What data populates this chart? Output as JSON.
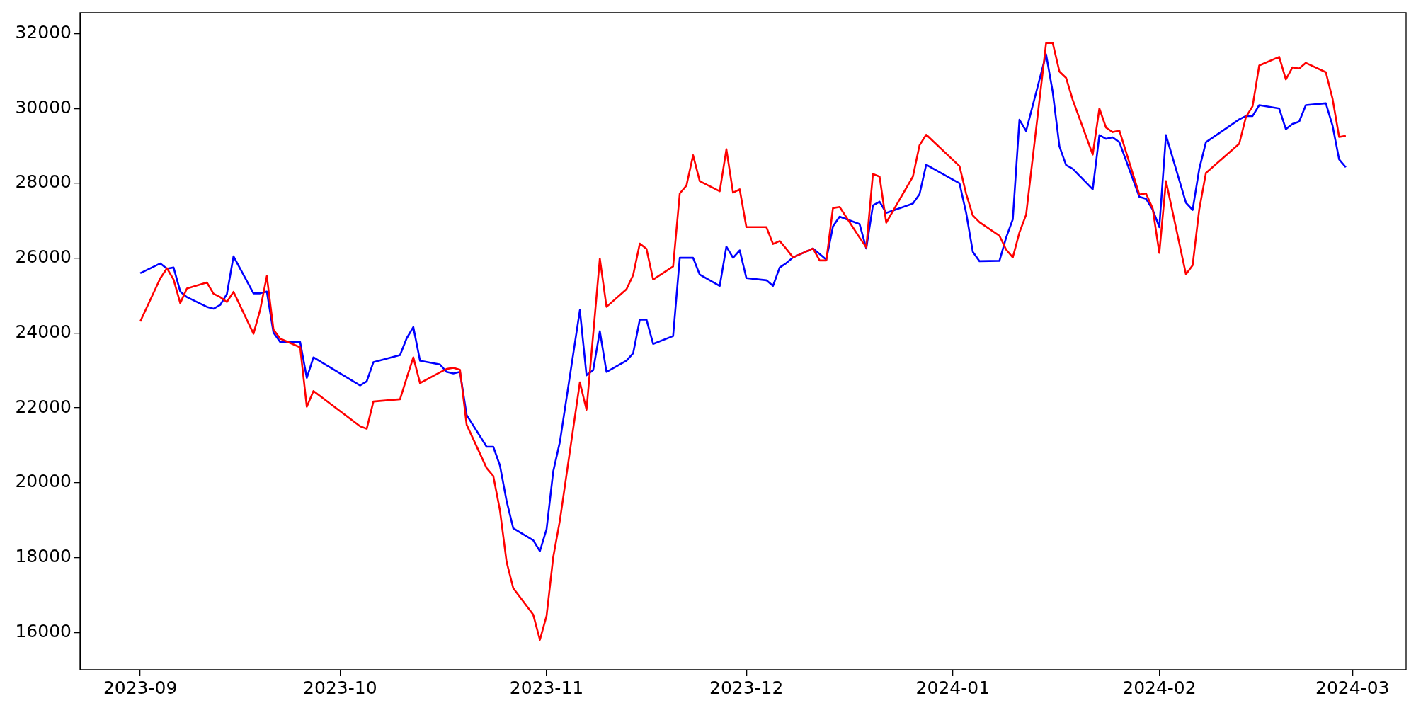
{
  "chart_data": {
    "type": "line",
    "x": [
      "2023-09-01",
      "2023-09-04",
      "2023-09-05",
      "2023-09-06",
      "2023-09-07",
      "2023-09-08",
      "2023-09-11",
      "2023-09-12",
      "2023-09-13",
      "2023-09-14",
      "2023-09-15",
      "2023-09-18",
      "2023-09-19",
      "2023-09-20",
      "2023-09-21",
      "2023-09-22",
      "2023-09-25",
      "2023-09-26",
      "2023-09-27",
      "2023-10-04",
      "2023-10-05",
      "2023-10-06",
      "2023-10-10",
      "2023-10-11",
      "2023-10-12",
      "2023-10-13",
      "2023-10-16",
      "2023-10-17",
      "2023-10-18",
      "2023-10-19",
      "2023-10-20",
      "2023-10-23",
      "2023-10-24",
      "2023-10-25",
      "2023-10-26",
      "2023-10-27",
      "2023-10-30",
      "2023-10-31",
      "2023-11-01",
      "2023-11-02",
      "2023-11-03",
      "2023-11-06",
      "2023-11-07",
      "2023-11-08",
      "2023-11-09",
      "2023-11-10",
      "2023-11-13",
      "2023-11-14",
      "2023-11-15",
      "2023-11-16",
      "2023-11-17",
      "2023-11-20",
      "2023-11-21",
      "2023-11-22",
      "2023-11-23",
      "2023-11-24",
      "2023-11-27",
      "2023-11-28",
      "2023-11-29",
      "2023-11-30",
      "2023-12-01",
      "2023-12-04",
      "2023-12-05",
      "2023-12-06",
      "2023-12-07",
      "2023-12-08",
      "2023-12-11",
      "2023-12-12",
      "2023-12-13",
      "2023-12-14",
      "2023-12-15",
      "2023-12-18",
      "2023-12-19",
      "2023-12-20",
      "2023-12-21",
      "2023-12-22",
      "2023-12-26",
      "2023-12-27",
      "2023-12-28",
      "2024-01-02",
      "2024-01-03",
      "2024-01-04",
      "2024-01-05",
      "2024-01-08",
      "2024-01-09",
      "2024-01-10",
      "2024-01-11",
      "2024-01-12",
      "2024-01-15",
      "2024-01-16",
      "2024-01-17",
      "2024-01-18",
      "2024-01-19",
      "2024-01-22",
      "2024-01-23",
      "2024-01-24",
      "2024-01-25",
      "2024-01-26",
      "2024-01-29",
      "2024-01-30",
      "2024-01-31",
      "2024-02-01",
      "2024-02-02",
      "2024-02-05",
      "2024-02-06",
      "2024-02-07",
      "2024-02-08",
      "2024-02-13",
      "2024-02-14",
      "2024-02-15",
      "2024-02-16",
      "2024-02-19",
      "2024-02-20",
      "2024-02-21",
      "2024-02-22",
      "2024-02-23",
      "2024-02-26",
      "2024-02-27",
      "2024-02-28",
      "2024-02-29"
    ],
    "series": [
      {
        "color": "#ff0000",
        "values": [
          24310,
          25460,
          25730,
          25430,
          24800,
          25190,
          25350,
          25050,
          24960,
          24830,
          25100,
          23980,
          24620,
          25520,
          24090,
          23850,
          23620,
          22030,
          22450,
          21510,
          21440,
          22170,
          22230,
          22800,
          23350,
          22660,
          22950,
          23040,
          23070,
          23020,
          21550,
          20390,
          20180,
          19260,
          17880,
          17180,
          16470,
          15800,
          16440,
          18010,
          18990,
          22680,
          21950,
          23970,
          25990,
          24700,
          25170,
          25550,
          26390,
          26250,
          25430,
          25780,
          27730,
          27940,
          28750,
          28060,
          27790,
          28910,
          27750,
          27840,
          26830,
          26830,
          26380,
          26460,
          26250,
          26020,
          26260,
          25940,
          25940,
          27340,
          27370,
          26550,
          26290,
          28250,
          28180,
          26950,
          28180,
          29020,
          29300,
          28460,
          27720,
          27140,
          26960,
          26600,
          26230,
          26020,
          26690,
          27160,
          31750,
          31750,
          30990,
          30820,
          30230,
          28770,
          30000,
          29490,
          29370,
          29410,
          27700,
          27730,
          27330,
          26140,
          28060,
          25570,
          25810,
          27310,
          28280,
          29060,
          29770,
          30060,
          31150,
          31380,
          30780,
          31100,
          31070,
          31220,
          30970,
          30270,
          29240,
          29270
        ]
      },
      {
        "color": "#0000ff",
        "values": [
          25600,
          25860,
          25720,
          25750,
          25110,
          24960,
          24700,
          24650,
          24750,
          25040,
          26050,
          25060,
          25060,
          25110,
          24010,
          23760,
          23760,
          22800,
          23350,
          22600,
          22710,
          23220,
          23410,
          23860,
          24160,
          23260,
          23160,
          22960,
          22920,
          22960,
          21810,
          20960,
          20960,
          20460,
          19510,
          18780,
          18460,
          18170,
          18760,
          20300,
          21090,
          24610,
          22870,
          23010,
          24050,
          22960,
          23260,
          23460,
          24360,
          24360,
          23710,
          23920,
          26010,
          26010,
          26010,
          25560,
          25260,
          26310,
          26010,
          26210,
          25470,
          25410,
          25260,
          25750,
          25870,
          26020,
          26260,
          26110,
          25960,
          26850,
          27110,
          26910,
          26260,
          27410,
          27510,
          27210,
          27460,
          27710,
          28500,
          28000,
          27210,
          26170,
          25920,
          25930,
          26550,
          27040,
          29700,
          29400,
          31450,
          30440,
          28990,
          28490,
          28390,
          27840,
          29290,
          29190,
          29230,
          29100,
          27640,
          27590,
          27300,
          26830,
          29290,
          27480,
          27290,
          28390,
          29100,
          29710,
          29800,
          29800,
          30090,
          30000,
          29450,
          29590,
          29650,
          30090,
          30140,
          29550,
          28640,
          28430
        ]
      }
    ],
    "xlim": [
      "2023-08-22T22:48",
      "2024-03-09T01:12"
    ],
    "xticks": [
      "2023-09",
      "2023-10",
      "2023-11",
      "2023-12",
      "2024-01",
      "2024-02",
      "2024-03"
    ],
    "ylim": [
      15000,
      32560
    ],
    "yticks": [
      16000,
      18000,
      20000,
      22000,
      24000,
      26000,
      28000,
      30000,
      32000
    ]
  }
}
